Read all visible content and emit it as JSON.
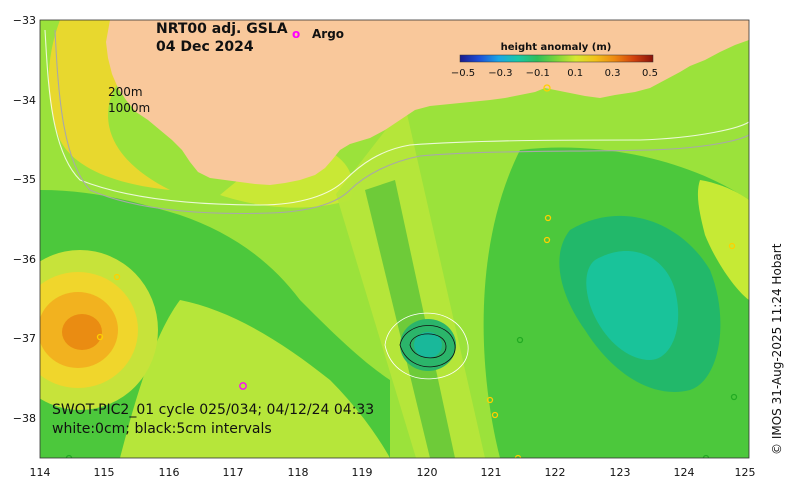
{
  "title": {
    "line1": "NRT00 adj. GSLA",
    "line2": "04 Dec 2024"
  },
  "legend": {
    "argo_label": "Argo",
    "argo_symbol": "o"
  },
  "depth_contours": {
    "label1": "200m",
    "label2": "1000m"
  },
  "colorbar": {
    "title": "height anomaly (m)",
    "ticks": [
      "−0.5",
      "−0.3",
      "−0.1",
      "0.1",
      "0.3",
      "0.5"
    ],
    "min": -0.5,
    "max": 0.5,
    "colors": [
      "#1a1a8c",
      "#1d4fd8",
      "#1aa6e6",
      "#19c8a8",
      "#2fbf5a",
      "#7cd63a",
      "#d6e830",
      "#f2c21a",
      "#ee8a10",
      "#d2420d",
      "#8a1209"
    ]
  },
  "axes": {
    "x_ticks": [
      "114",
      "115",
      "116",
      "117",
      "118",
      "119",
      "120",
      "121",
      "122",
      "123",
      "124",
      "125"
    ],
    "y_ticks": [
      "−33",
      "−34",
      "−35",
      "−36",
      "−37",
      "−38"
    ]
  },
  "swot": {
    "line1": "SWOT-PIC2_01 cycle 025/034; 04/12/24 04:33",
    "line2": "white:0cm; black:5cm intervals"
  },
  "credit": "© IMOS 31-Aug-2025 11:24 Hobart",
  "palette": {
    "land": "#f9c89b",
    "ocean_base": "#9be23b",
    "argo": "#ff00ff"
  }
}
